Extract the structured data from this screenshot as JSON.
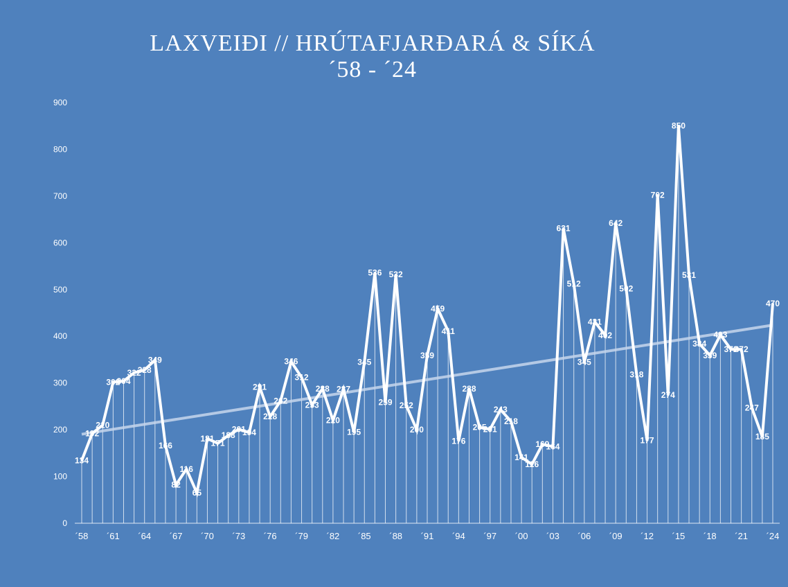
{
  "chart_data": {
    "type": "line",
    "title": "LAXVEIÐI // HRÚTAFJARÐARÁ & SÍKÁ",
    "subtitle": "´58 - ´24",
    "xlabel": "",
    "ylabel": "",
    "x": [
      1958,
      1959,
      1960,
      1961,
      1962,
      1963,
      1964,
      1965,
      1966,
      1967,
      1968,
      1969,
      1970,
      1971,
      1972,
      1973,
      1974,
      1975,
      1976,
      1977,
      1978,
      1979,
      1980,
      1981,
      1982,
      1983,
      1984,
      1985,
      1986,
      1987,
      1988,
      1989,
      1990,
      1991,
      1992,
      1993,
      1994,
      1995,
      1996,
      1997,
      1998,
      1999,
      2000,
      2001,
      2002,
      2003,
      2004,
      2005,
      2006,
      2007,
      2008,
      2009,
      2010,
      2011,
      2012,
      2013,
      2014,
      2015,
      2016,
      2017,
      2018,
      2019,
      2020,
      2021,
      2022,
      2023,
      2024
    ],
    "values": [
      134,
      192,
      210,
      302,
      304,
      322,
      328,
      349,
      166,
      82,
      116,
      65,
      181,
      171,
      188,
      201,
      194,
      291,
      228,
      262,
      346,
      312,
      253,
      288,
      220,
      287,
      195,
      345,
      536,
      259,
      532,
      252,
      200,
      359,
      459,
      411,
      176,
      288,
      205,
      201,
      243,
      218,
      141,
      126,
      169,
      164,
      631,
      512,
      345,
      431,
      402,
      642,
      502,
      318,
      177,
      702,
      274,
      850,
      531,
      384,
      359,
      403,
      372,
      372,
      247,
      185,
      470
    ],
    "x_tick_labels": [
      "´58",
      "´61",
      "´64",
      "´67",
      "´70",
      "´73",
      "´76",
      "´79",
      "´82",
      "´85",
      "´88",
      "´91",
      "´94",
      "´97",
      "´00",
      "´03",
      "´06",
      "´09",
      "´12",
      "´15",
      "´18",
      "´21",
      "´24"
    ],
    "y_ticks": [
      0,
      100,
      200,
      300,
      400,
      500,
      600,
      700,
      800,
      900
    ],
    "ylim": [
      0,
      900
    ],
    "data_labels": true,
    "drop_lines": true,
    "trendline": "linear",
    "grid": false,
    "legend": "none",
    "colors": {
      "background": "#4f81bd",
      "line": "#ffffff",
      "trendline": "#c6d6ec"
    }
  }
}
